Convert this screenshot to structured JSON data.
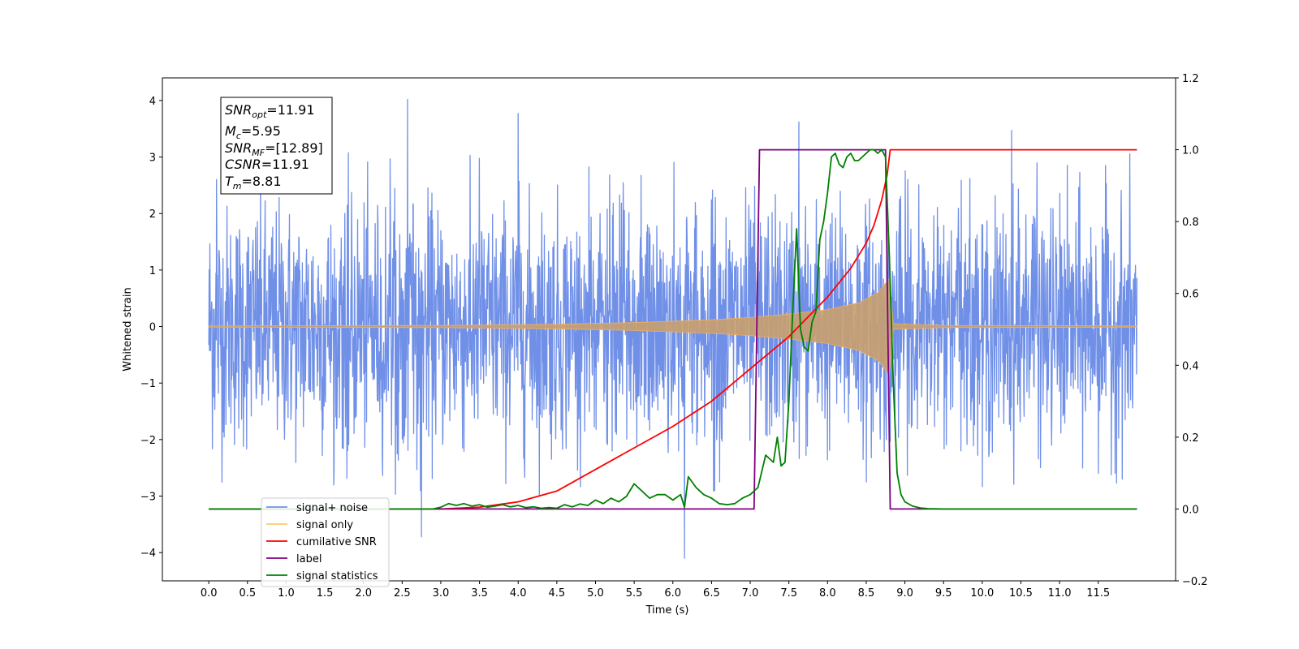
{
  "chart_data": {
    "type": "line",
    "xlabel": "Time (s)",
    "ylabel": "Whitened strain",
    "xlim": [
      -0.6,
      12.5
    ],
    "ylim": [
      -4.5,
      4.4
    ],
    "y2lim": [
      -0.2,
      1.2
    ],
    "x_ticks": [
      "0.0",
      "0.5",
      "1.0",
      "1.5",
      "2.0",
      "2.5",
      "3.0",
      "3.5",
      "4.0",
      "4.5",
      "5.0",
      "5.5",
      "6.0",
      "6.5",
      "7.0",
      "7.5",
      "8.0",
      "8.5",
      "9.0",
      "9.5",
      "10.0",
      "10.5",
      "11.0",
      "11.5"
    ],
    "y_ticks": [
      "4",
      "3",
      "2",
      "1",
      "0",
      "−1",
      "−2",
      "−3",
      "−4"
    ],
    "y2_ticks": [
      "1.2",
      "1.0",
      "0.8",
      "0.6",
      "0.4",
      "0.2",
      "0.0",
      "−0.2"
    ],
    "legend_placement": "lower-left",
    "annotation": {
      "snr_opt": "=11.91",
      "mc": "=5.95",
      "snr_mf": "=[12.89]",
      "csnr": "=11.91",
      "tm": "=8.81"
    },
    "series": [
      {
        "name": "signal+ noise",
        "axis": "left",
        "color": "#7090e8",
        "description_range": [
          0.0,
          12.0
        ],
        "notable_peaks": [
          [
            0.1,
            2.6
          ],
          [
            2.57,
            4.02
          ],
          [
            4.0,
            3.77
          ],
          [
            7.63,
            3.62
          ],
          [
            10.38,
            3.47
          ],
          [
            6.15,
            -4.1
          ],
          [
            2.75,
            -3.72
          ]
        ]
      },
      {
        "name": "signal only",
        "axis": "left",
        "color": "#c8a070",
        "envelope": [
          [
            0.0,
            0.01
          ],
          [
            3.0,
            0.02
          ],
          [
            4.5,
            0.04
          ],
          [
            5.5,
            0.07
          ],
          [
            6.5,
            0.12
          ],
          [
            7.0,
            0.16
          ],
          [
            7.5,
            0.22
          ],
          [
            8.0,
            0.3
          ],
          [
            8.4,
            0.42
          ],
          [
            8.65,
            0.6
          ],
          [
            8.8,
            0.85
          ],
          [
            8.85,
            0.05
          ],
          [
            9.5,
            0.02
          ],
          [
            12.0,
            0.01
          ]
        ]
      },
      {
        "name": "cumilative SNR",
        "axis": "right",
        "color": "#ff0000",
        "x": [
          0.0,
          3.0,
          3.5,
          4.0,
          4.5,
          5.0,
          5.5,
          6.0,
          6.5,
          7.0,
          7.5,
          8.0,
          8.3,
          8.5,
          8.6,
          8.7,
          8.77,
          8.81,
          12.0
        ],
        "y": [
          0.0,
          0.0,
          0.005,
          0.02,
          0.05,
          0.11,
          0.17,
          0.23,
          0.3,
          0.39,
          0.48,
          0.59,
          0.67,
          0.74,
          0.79,
          0.86,
          0.93,
          1.0,
          1.0
        ]
      },
      {
        "name": "label",
        "axis": "right",
        "color": "#800080",
        "x": [
          0.0,
          7.05,
          7.12,
          8.75,
          8.75,
          8.81,
          12.0
        ],
        "y": [
          0.0,
          0.0,
          1.0,
          1.0,
          1.0,
          0.0,
          0.0
        ]
      },
      {
        "name": "signal statistics",
        "axis": "right",
        "color": "#008000",
        "x": [
          0.0,
          2.9,
          3.0,
          3.1,
          3.2,
          3.3,
          3.4,
          3.5,
          3.6,
          3.7,
          3.8,
          3.9,
          4.0,
          4.1,
          4.2,
          4.3,
          4.4,
          4.5,
          4.6,
          4.7,
          4.8,
          4.9,
          5.0,
          5.1,
          5.2,
          5.3,
          5.4,
          5.5,
          5.6,
          5.7,
          5.8,
          5.9,
          6.0,
          6.1,
          6.15,
          6.2,
          6.3,
          6.4,
          6.5,
          6.6,
          6.7,
          6.8,
          6.9,
          7.0,
          7.1,
          7.2,
          7.3,
          7.35,
          7.4,
          7.45,
          7.5,
          7.55,
          7.6,
          7.65,
          7.7,
          7.75,
          7.8,
          7.85,
          7.9,
          7.95,
          8.0,
          8.05,
          8.1,
          8.15,
          8.2,
          8.25,
          8.3,
          8.35,
          8.4,
          8.45,
          8.5,
          8.55,
          8.6,
          8.65,
          8.7,
          8.75,
          8.8,
          8.85,
          8.9,
          8.95,
          9.0,
          9.1,
          9.2,
          9.3,
          9.5,
          10.0,
          12.0
        ],
        "y": [
          0.0,
          0.0,
          0.005,
          0.015,
          0.01,
          0.015,
          0.008,
          0.012,
          0.005,
          0.008,
          0.012,
          0.006,
          0.01,
          0.004,
          0.006,
          0.002,
          0.004,
          0.002,
          0.012,
          0.006,
          0.014,
          0.01,
          0.025,
          0.015,
          0.03,
          0.02,
          0.035,
          0.07,
          0.05,
          0.03,
          0.04,
          0.04,
          0.025,
          0.04,
          0.005,
          0.09,
          0.06,
          0.04,
          0.03,
          0.015,
          0.012,
          0.015,
          0.03,
          0.04,
          0.06,
          0.15,
          0.13,
          0.2,
          0.12,
          0.13,
          0.3,
          0.55,
          0.78,
          0.5,
          0.45,
          0.44,
          0.52,
          0.55,
          0.75,
          0.8,
          0.88,
          0.98,
          0.99,
          0.96,
          0.95,
          0.98,
          0.99,
          0.97,
          0.97,
          0.98,
          0.99,
          1.0,
          1.0,
          0.99,
          1.0,
          0.98,
          0.7,
          0.35,
          0.1,
          0.04,
          0.02,
          0.008,
          0.003,
          0.001,
          0.0,
          0.0,
          0.0
        ]
      }
    ]
  }
}
